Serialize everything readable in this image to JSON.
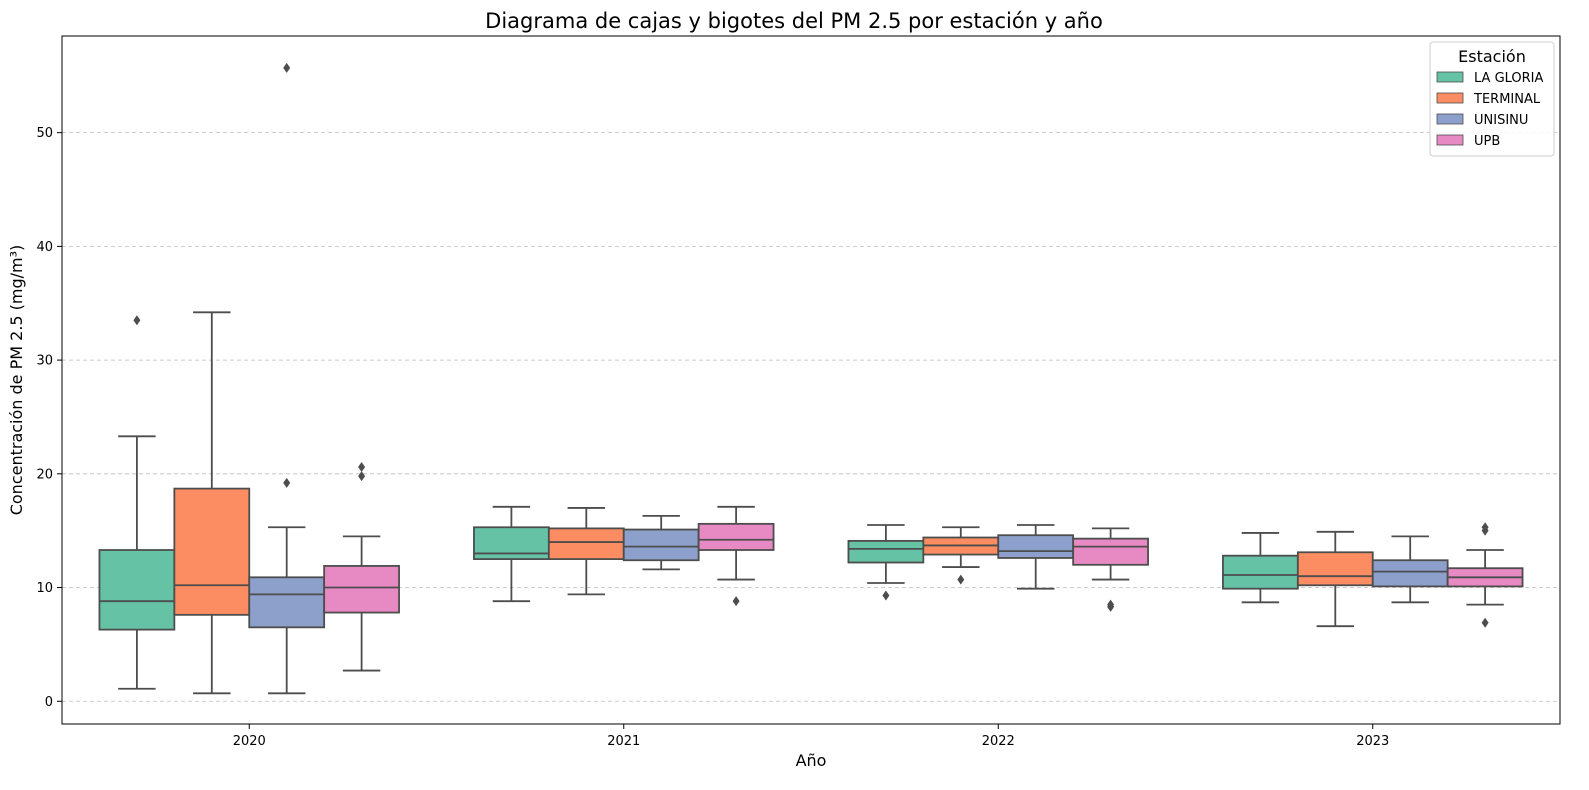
{
  "chart_data": {
    "type": "box",
    "title": "Diagrama de cajas y bigotes del PM 2.5 por estación y año",
    "xlabel": "Año",
    "ylabel": "Concentración de PM 2.5 (mg/m³)",
    "ylim": [
      -2,
      58.5
    ],
    "yticks": [
      0,
      10,
      20,
      30,
      40,
      50
    ],
    "grid": "y-dashed",
    "legend": {
      "title": "Estación",
      "placement": "top-right"
    },
    "categories": [
      "2020",
      "2021",
      "2022",
      "2023"
    ],
    "series": [
      {
        "name": "LA GLORIA",
        "color": "#66c2a5",
        "boxes": [
          {
            "whislo": 1.1,
            "q1": 6.3,
            "med": 8.8,
            "q3": 13.3,
            "whishi": 23.3,
            "fliers": [
              33.5
            ]
          },
          {
            "whislo": 8.8,
            "q1": 12.5,
            "med": 13.0,
            "q3": 15.3,
            "whishi": 17.1,
            "fliers": []
          },
          {
            "whislo": 10.4,
            "q1": 12.2,
            "med": 13.4,
            "q3": 14.1,
            "whishi": 15.5,
            "fliers": [
              9.3
            ]
          },
          {
            "whislo": 8.7,
            "q1": 9.9,
            "med": 11.1,
            "q3": 12.8,
            "whishi": 14.8,
            "fliers": []
          }
        ]
      },
      {
        "name": "TERMINAL",
        "color": "#fc8d62",
        "boxes": [
          {
            "whislo": 0.7,
            "q1": 7.6,
            "med": 10.2,
            "q3": 18.7,
            "whishi": 34.2,
            "fliers": []
          },
          {
            "whislo": 9.4,
            "q1": 12.5,
            "med": 14.0,
            "q3": 15.2,
            "whishi": 17.0,
            "fliers": []
          },
          {
            "whislo": 11.8,
            "q1": 12.9,
            "med": 13.7,
            "q3": 14.4,
            "whishi": 15.3,
            "fliers": [
              10.7
            ]
          },
          {
            "whislo": 6.6,
            "q1": 10.2,
            "med": 11.0,
            "q3": 13.1,
            "whishi": 14.9,
            "fliers": []
          }
        ]
      },
      {
        "name": "UNISINU",
        "color": "#8da0cb",
        "boxes": [
          {
            "whislo": 0.7,
            "q1": 6.5,
            "med": 9.4,
            "q3": 10.9,
            "whishi": 15.3,
            "fliers": [
              19.2,
              55.7
            ]
          },
          {
            "whislo": 11.6,
            "q1": 12.4,
            "med": 13.6,
            "q3": 15.1,
            "whishi": 16.3,
            "fliers": []
          },
          {
            "whislo": 9.9,
            "q1": 12.6,
            "med": 13.2,
            "q3": 14.6,
            "whishi": 15.5,
            "fliers": []
          },
          {
            "whislo": 8.7,
            "q1": 10.1,
            "med": 11.4,
            "q3": 12.4,
            "whishi": 14.5,
            "fliers": []
          }
        ]
      },
      {
        "name": "UPB",
        "color": "#e78ac3",
        "boxes": [
          {
            "whislo": 2.7,
            "q1": 7.8,
            "med": 10.0,
            "q3": 11.9,
            "whishi": 14.5,
            "fliers": [
              19.8,
              20.6
            ]
          },
          {
            "whislo": 10.7,
            "q1": 13.3,
            "med": 14.2,
            "q3": 15.6,
            "whishi": 17.1,
            "fliers": [
              8.8
            ]
          },
          {
            "whislo": 10.7,
            "q1": 12.0,
            "med": 13.6,
            "q3": 14.3,
            "whishi": 15.2,
            "fliers": [
              8.3,
              8.5
            ]
          },
          {
            "whislo": 8.5,
            "q1": 10.1,
            "med": 10.9,
            "q3": 11.7,
            "whishi": 13.3,
            "fliers": [
              6.9,
              15.0,
              15.3
            ]
          }
        ]
      }
    ]
  }
}
